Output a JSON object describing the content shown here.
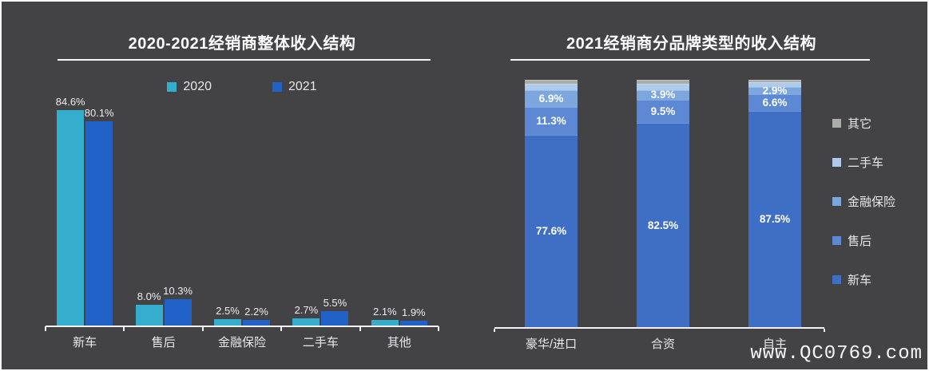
{
  "page": {
    "background": "#434346",
    "watermark": "www.QC0769.com"
  },
  "chart_data": [
    {
      "type": "bar",
      "title": "2020-2021经销商整体收入结构",
      "categories": [
        "新车",
        "售后",
        "金融保险",
        "二手车",
        "其他"
      ],
      "series": [
        {
          "name": "2020",
          "color": "#35AECD",
          "values": [
            84.6,
            8.0,
            2.5,
            2.7,
            2.1
          ]
        },
        {
          "name": "2021",
          "color": "#2162C8",
          "values": [
            80.1,
            10.3,
            2.2,
            5.5,
            1.9
          ]
        }
      ],
      "value_suffix": "%",
      "value_labels": true,
      "legend_position": "top",
      "xlabel": "",
      "ylabel": "",
      "ylim": [
        0,
        92
      ],
      "grid": false
    },
    {
      "type": "stacked-bar",
      "title": "2021经销商分品牌类型的收入结构",
      "categories": [
        "豪华/进口",
        "合资",
        "自主"
      ],
      "series": [
        {
          "name": "新车",
          "color": "#3E6FC4",
          "values": [
            77.6,
            82.5,
            87.5
          ],
          "labeled": true
        },
        {
          "name": "售后",
          "color": "#5C88D4",
          "values": [
            11.3,
            9.5,
            6.6
          ],
          "labeled": true
        },
        {
          "name": "金融保险",
          "color": "#7CA6DE",
          "values": [
            6.9,
            3.9,
            2.9
          ],
          "labeled": true
        },
        {
          "name": "二手车",
          "color": "#AECBEC",
          "values": [
            2.5,
            2.6,
            2.0
          ],
          "labeled": false
        },
        {
          "name": "其它",
          "color": "#ABADA8",
          "values": [
            1.7,
            1.5,
            1.0
          ],
          "labeled": false
        }
      ],
      "value_suffix": "%",
      "value_labels": true,
      "legend_position": "right",
      "legend_order": [
        "其它",
        "二手车",
        "金融保险",
        "售后",
        "新车"
      ],
      "xlabel": "",
      "ylabel": "",
      "ylim": [
        0,
        100
      ],
      "grid": false
    }
  ]
}
